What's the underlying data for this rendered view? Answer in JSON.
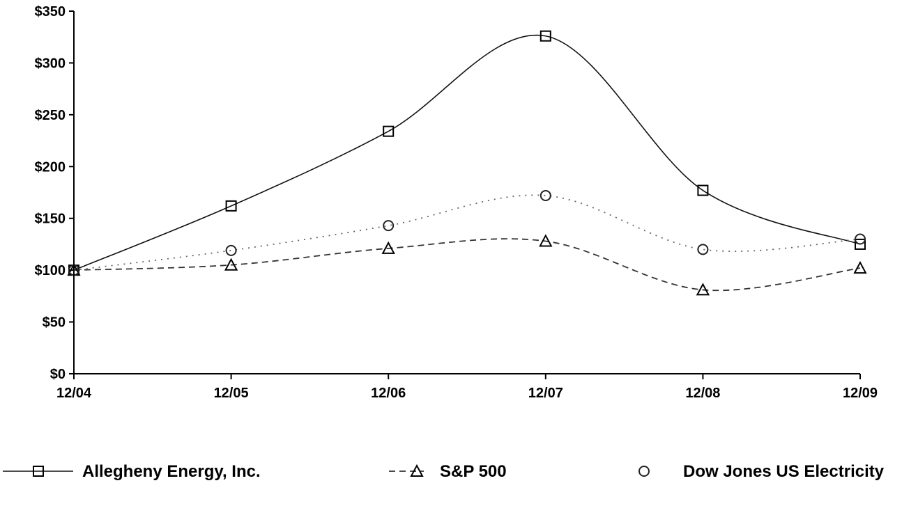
{
  "chart_data": {
    "type": "line",
    "title": "",
    "xlabel": "",
    "ylabel": "",
    "categories": [
      "12/04",
      "12/05",
      "12/06",
      "12/07",
      "12/08",
      "12/09"
    ],
    "y_ticks": [
      "$0",
      "$50",
      "$100",
      "$150",
      "$200",
      "$250",
      "$300",
      "$350"
    ],
    "ylim": [
      0,
      350
    ],
    "grid": false,
    "legend_position": "bottom",
    "series": [
      {
        "name": "Allegheny Energy, Inc.",
        "values": [
          100,
          162,
          234,
          326,
          177,
          125
        ],
        "marker": "square",
        "line_style": "solid",
        "color": "#000000"
      },
      {
        "name": "S&P 500",
        "values": [
          100,
          105,
          121,
          128,
          81,
          102
        ],
        "marker": "triangle",
        "line_style": "dashed",
        "color": "#000000"
      },
      {
        "name": "Dow Jones US Electricity",
        "values": [
          100,
          119,
          143,
          172,
          120,
          130
        ],
        "marker": "circle",
        "line_style": "dotted",
        "color": "#000000"
      }
    ]
  }
}
